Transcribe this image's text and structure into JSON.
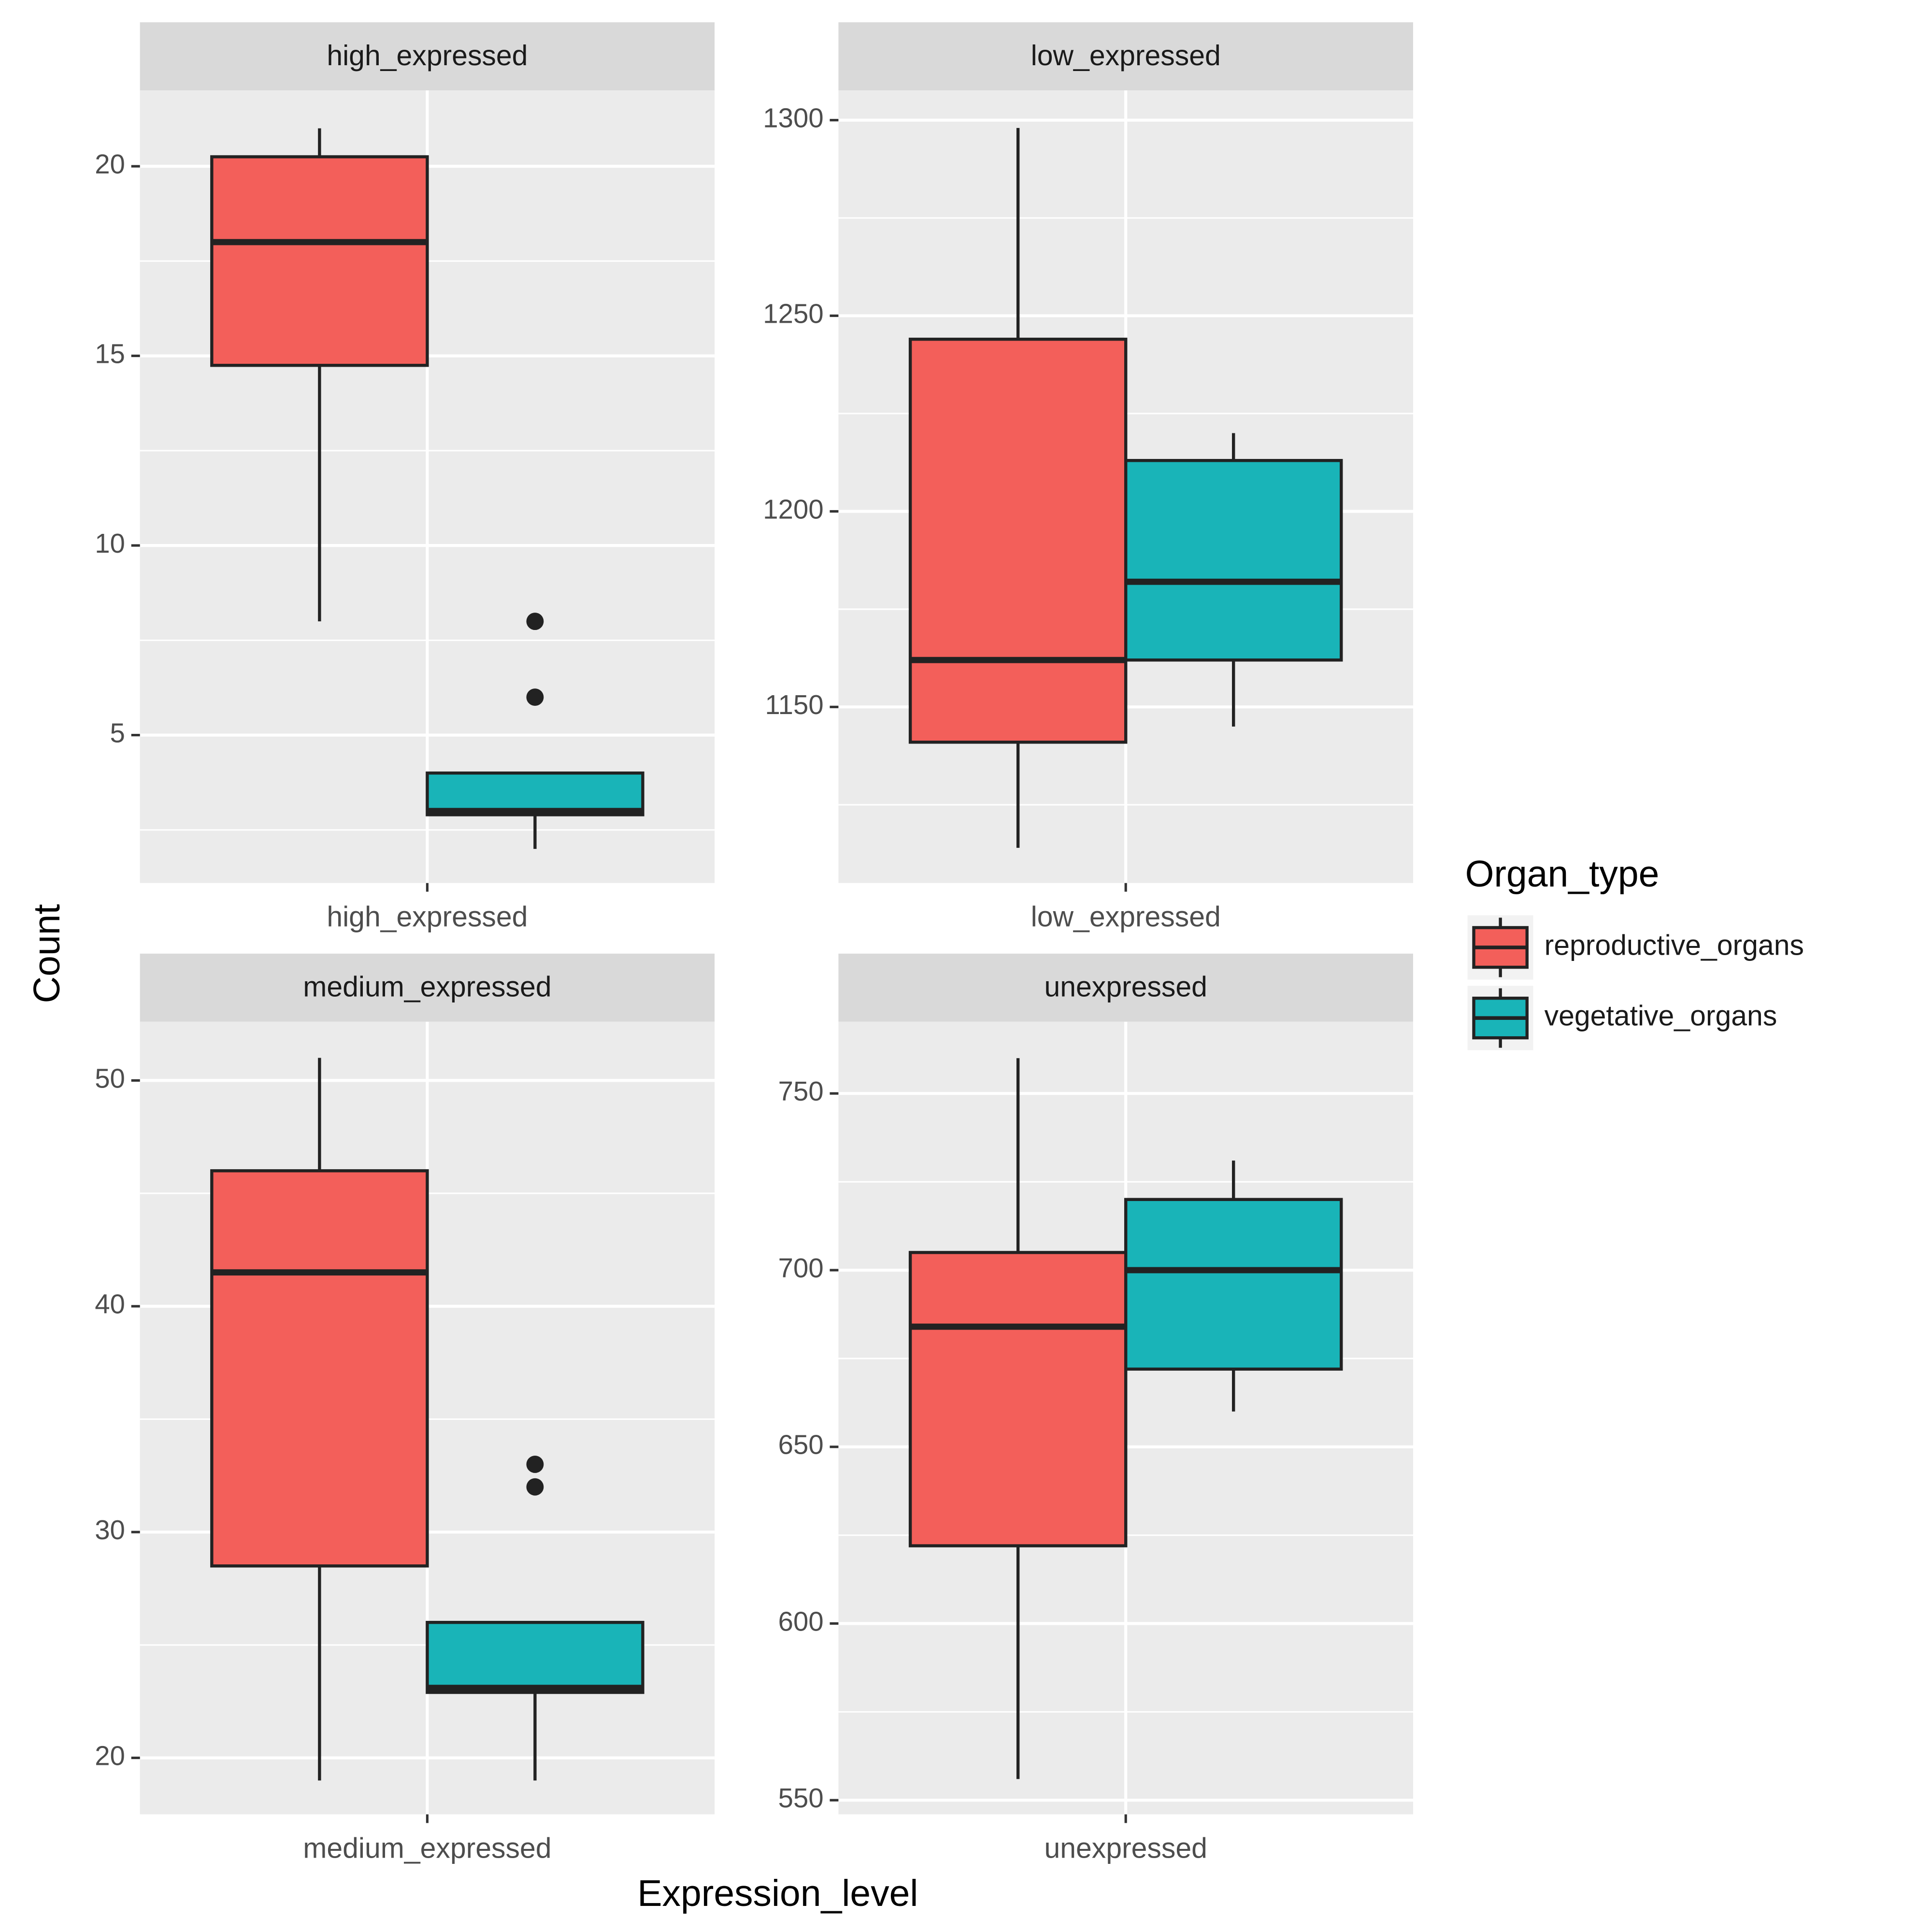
{
  "chart_data": [
    {
      "type": "box",
      "title": "high_expressed",
      "categories": [
        "high_expressed"
      ],
      "ylim": [
        1.1,
        22
      ],
      "yticks": [
        5,
        10,
        15,
        20
      ],
      "grid": true,
      "series": [
        {
          "name": "reproductive_organs",
          "color": "#f35f5a",
          "values": [
            {
              "min": 8,
              "q1": 14.75,
              "median": 18,
              "q3": 20.25,
              "max": 21,
              "outliers": []
            }
          ]
        },
        {
          "name": "vegetative_organs",
          "color": "#19b4b8",
          "values": [
            {
              "min": 2,
              "q1": 2.9,
              "median": 3,
              "q3": 4,
              "max": 4,
              "outliers": [
                8,
                6
              ]
            }
          ]
        }
      ]
    },
    {
      "type": "box",
      "title": "low_expressed",
      "categories": [
        "low_expressed"
      ],
      "ylim": [
        1105,
        1307.6
      ],
      "yticks": [
        1150,
        1200,
        1250,
        1300
      ],
      "grid": true,
      "series": [
        {
          "name": "reproductive_organs",
          "color": "#f35f5a",
          "values": [
            {
              "min": 1114,
              "q1": 1141,
              "median": 1162,
              "q3": 1244,
              "max": 1298,
              "outliers": []
            }
          ]
        },
        {
          "name": "vegetative_organs",
          "color": "#19b4b8",
          "values": [
            {
              "min": 1145,
              "q1": 1162,
              "median": 1182,
              "q3": 1213,
              "max": 1220,
              "outliers": []
            }
          ]
        }
      ]
    },
    {
      "type": "box",
      "title": "medium_expressed",
      "categories": [
        "medium_expressed"
      ],
      "ylim": [
        17.5,
        52.6
      ],
      "yticks": [
        20,
        30,
        40,
        50
      ],
      "grid": true,
      "series": [
        {
          "name": "reproductive_organs",
          "color": "#f35f5a",
          "values": [
            {
              "min": 19,
              "q1": 28.5,
              "median": 41.5,
              "q3": 46,
              "max": 51,
              "outliers": []
            }
          ]
        },
        {
          "name": "vegetative_organs",
          "color": "#19b4b8",
          "values": [
            {
              "min": 19,
              "q1": 22.9,
              "median": 23.1,
              "q3": 26,
              "max": 26,
              "outliers": [
                33,
                32
              ]
            }
          ]
        }
      ]
    },
    {
      "type": "box",
      "title": "unexpressed",
      "categories": [
        "unexpressed"
      ],
      "ylim": [
        546,
        770.3
      ],
      "yticks": [
        550,
        600,
        650,
        700,
        750
      ],
      "grid": true,
      "series": [
        {
          "name": "reproductive_organs",
          "color": "#f35f5a",
          "values": [
            {
              "min": 556,
              "q1": 622,
              "median": 684,
              "q3": 705,
              "max": 760,
              "outliers": []
            }
          ]
        },
        {
          "name": "vegetative_organs",
          "color": "#19b4b8",
          "values": [
            {
              "min": 660,
              "q1": 672,
              "median": 700,
              "q3": 720,
              "max": 731,
              "outliers": []
            }
          ]
        }
      ]
    }
  ],
  "xlabel": "Expression_level",
  "ylabel": "Count",
  "legend": {
    "title": "Organ_type",
    "position": "right"
  }
}
